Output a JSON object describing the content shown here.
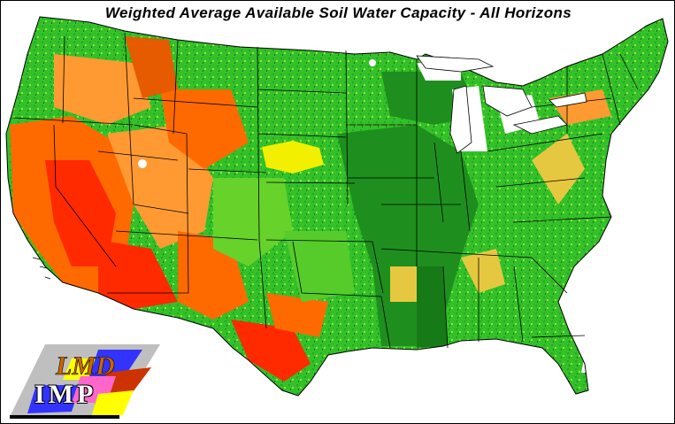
{
  "title": "Weighted Average Available Soil Water Capacity - All Horizons",
  "logo": {
    "text": "IMP",
    "icon": "lmd-imp-logo"
  },
  "colors": {
    "border": "#000000",
    "background": "#ffffff",
    "state_lines": "#000000",
    "palette": [
      "#ff2a00",
      "#ff6a00",
      "#ff9a33",
      "#e6c840",
      "#f2f000",
      "#99e62a",
      "#3cc82a",
      "#22a822",
      "#167a16",
      "#ffffff"
    ]
  }
}
